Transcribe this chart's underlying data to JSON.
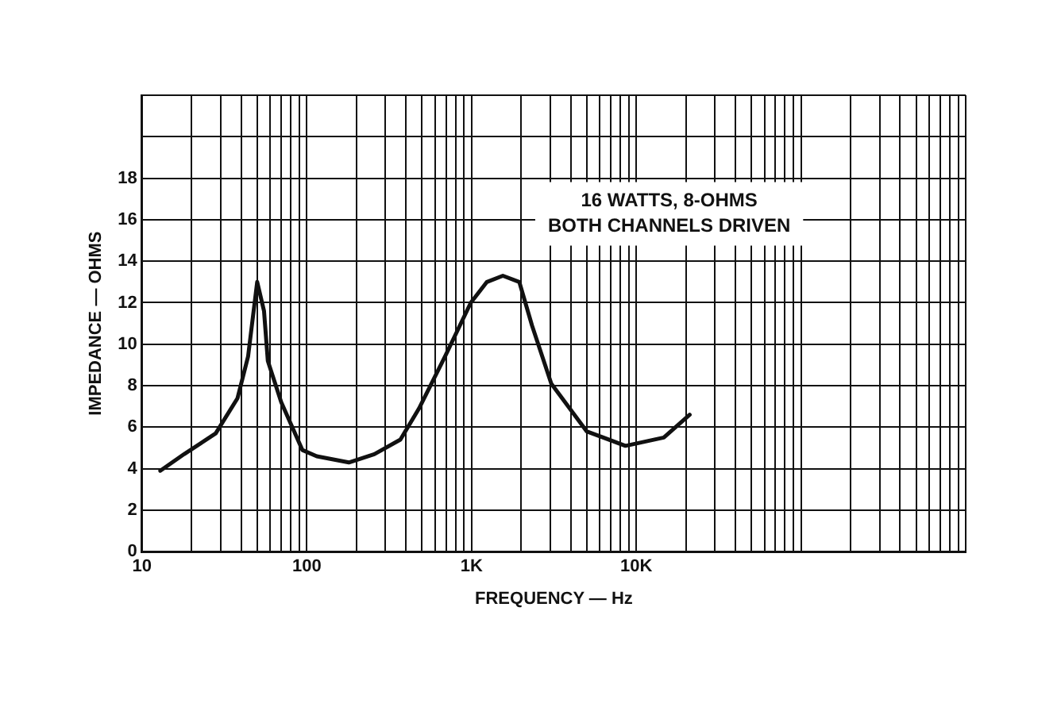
{
  "chart_data": {
    "type": "line",
    "xlabel": "FREQUENCY — Hz",
    "ylabel": "IMPEDANCE — OHMS",
    "x": [
      12.9,
      18,
      28,
      38,
      44,
      50,
      55,
      58,
      70,
      94,
      115,
      180,
      257,
      370,
      480,
      690,
      990,
      1240,
      1550,
      1950,
      2330,
      3050,
      5000,
      8600,
      14700,
      21100
    ],
    "series": [
      {
        "color": "#111111",
        "values": [
          3.9,
          4.7,
          5.7,
          7.4,
          9.4,
          13.0,
          11.6,
          9.2,
          7.2,
          4.9,
          4.6,
          4.3,
          4.7,
          5.4,
          6.9,
          9.4,
          12.0,
          13.0,
          13.3,
          13.0,
          10.9,
          8.1,
          5.8,
          5.1,
          5.5,
          6.6
        ]
      }
    ],
    "log": "x",
    "xlim": [
      10,
      1000000
    ],
    "xticks": [
      10,
      {
        "value": 20,
        "label": null
      },
      {
        "value": 30,
        "label": null
      },
      {
        "value": 40,
        "label": null
      },
      {
        "value": 50,
        "label": null
      },
      {
        "value": 60,
        "label": null
      },
      {
        "value": 70,
        "label": null
      },
      {
        "value": 80,
        "label": null
      },
      {
        "value": 90,
        "label": null
      },
      100,
      {
        "value": 200,
        "label": null
      },
      {
        "value": 300,
        "label": null
      },
      {
        "value": 400,
        "label": null
      },
      {
        "value": 500,
        "label": null
      },
      {
        "value": 600,
        "label": null
      },
      {
        "value": 700,
        "label": null
      },
      {
        "value": 800,
        "label": null
      },
      {
        "value": 900,
        "label": null
      },
      {
        "value": 1000,
        "label": "1K"
      },
      {
        "value": 2000,
        "label": null
      },
      {
        "value": 3000,
        "label": null
      },
      {
        "value": 4000,
        "label": null
      },
      {
        "value": 5000,
        "label": null
      },
      {
        "value": 6000,
        "label": null
      },
      {
        "value": 7000,
        "label": null
      },
      {
        "value": 8000,
        "label": null
      },
      {
        "value": 9000,
        "label": null
      },
      {
        "value": 10000,
        "label": "10K"
      },
      {
        "value": 20000,
        "label": null
      },
      {
        "value": 30000,
        "label": null
      },
      {
        "value": 40000,
        "label": null
      },
      {
        "value": 50000,
        "label": null
      },
      {
        "value": 60000,
        "label": null
      },
      {
        "value": 70000,
        "label": null
      },
      {
        "value": 80000,
        "label": null
      },
      {
        "value": 90000,
        "label": null
      },
      {
        "value": 100000,
        "label": null
      },
      {
        "value": 200000,
        "label": null
      },
      {
        "value": 300000,
        "label": null
      },
      {
        "value": 400000,
        "label": null
      },
      {
        "value": 500000,
        "label": null
      },
      {
        "value": 600000,
        "label": null
      },
      {
        "value": 700000,
        "label": null
      },
      {
        "value": 800000,
        "label": null
      },
      {
        "value": 900000,
        "label": null
      },
      {
        "value": 1000000,
        "label": null
      }
    ],
    "ylim": [
      0,
      22
    ],
    "yticks": [
      0,
      2,
      4,
      6,
      8,
      10,
      12,
      14,
      16,
      18,
      {
        "value": 20,
        "label": null
      },
      {
        "value": 22,
        "label": null
      }
    ],
    "grid": true,
    "legend": false,
    "marker": "none",
    "line_style": "solid",
    "annotations": [
      "16 WATTS, 8-OHMS\nBOTH CHANNELS DRIVEN"
    ]
  }
}
